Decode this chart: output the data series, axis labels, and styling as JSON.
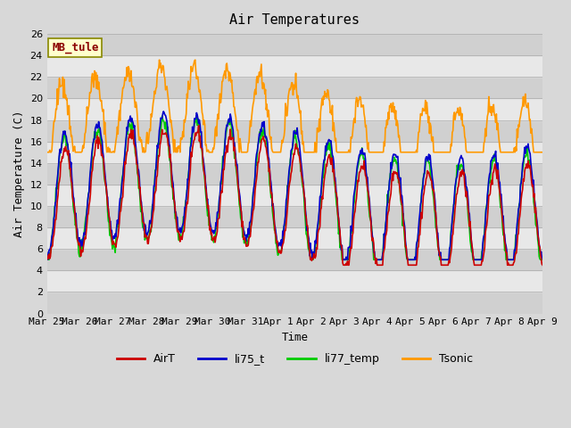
{
  "title": "Air Temperatures",
  "xlabel": "Time",
  "ylabel": "Air Temperature (C)",
  "ylim": [
    0,
    26
  ],
  "yticks": [
    0,
    2,
    4,
    6,
    8,
    10,
    12,
    14,
    16,
    18,
    20,
    22,
    24,
    26
  ],
  "x_labels": [
    "Mar 25",
    "Mar 26",
    "Mar 27",
    "Mar 28",
    "Mar 29",
    "Mar 30",
    "Mar 31",
    "Apr 1",
    "Apr 2",
    "Apr 3",
    "Apr 4",
    "Apr 5",
    "Apr 6",
    "Apr 7",
    "Apr 8",
    "Apr 9"
  ],
  "colors": {
    "AirT": "#cc0000",
    "li75_t": "#0000cc",
    "li77_temp": "#00cc00",
    "Tsonic": "#ff9900"
  },
  "legend_label": "MB_tule",
  "legend_box_color": "#ffffcc",
  "legend_box_edge": "#888800",
  "bg_color": "#e8e8e8",
  "plot_bg_color": "#f0f0f0"
}
